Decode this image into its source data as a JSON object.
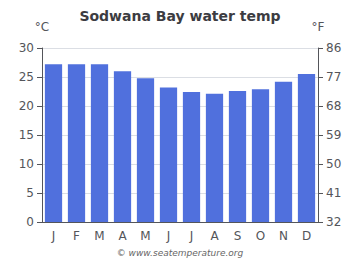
{
  "chart_data": {
    "type": "bar",
    "title": "Sodwana Bay water temp",
    "categories": [
      "J",
      "F",
      "M",
      "A",
      "M",
      "J",
      "J",
      "A",
      "S",
      "O",
      "N",
      "D"
    ],
    "values": [
      27.2,
      27.2,
      27.2,
      26.0,
      24.8,
      23.2,
      22.4,
      22.1,
      22.6,
      22.9,
      24.2,
      25.5
    ],
    "ylabel": "°C",
    "ylim": [
      0,
      30
    ],
    "yticks": [
      0,
      5,
      10,
      15,
      20,
      25,
      30
    ],
    "y2label": "°F",
    "y2lim": [
      32,
      86
    ],
    "y2ticks": [
      32,
      41,
      50,
      59,
      68,
      77,
      86
    ],
    "grid": true,
    "annotation": "© www.seatemperature.org"
  }
}
